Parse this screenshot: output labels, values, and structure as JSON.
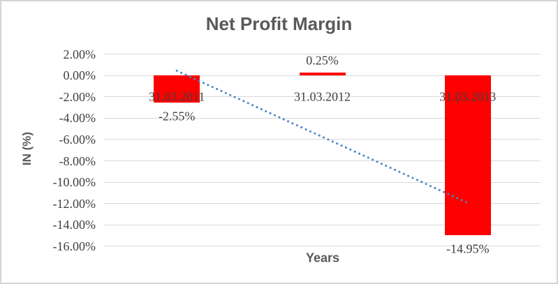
{
  "chart_data": {
    "type": "bar",
    "title": "Net Profit Margin",
    "xlabel": "Years",
    "ylabel": "IN (%)",
    "categories": [
      "31.03.2011",
      "31.03.2012",
      "31.03.2013"
    ],
    "values": [
      -2.55,
      0.25,
      -14.95
    ],
    "data_labels": [
      "-2.55%",
      "0.25%",
      "-14.95%"
    ],
    "y_tick_labels": [
      "2.00%",
      "0.00%",
      "-2.00%",
      "-4.00%",
      "-6.00%",
      "-8.00%",
      "-10.00%",
      "-12.00%",
      "-14.00%",
      "-16.00%"
    ],
    "y_tick_values": [
      2,
      0,
      -2,
      -4,
      -6,
      -8,
      -10,
      -12,
      -14,
      -16
    ],
    "ylim": [
      -16,
      2
    ],
    "grid": true,
    "legend": "none",
    "bar_color": "#ff0000",
    "trendline": {
      "type": "linear",
      "style": "dotted",
      "color": "#4a86c8",
      "start_value": 0.45,
      "end_value": -11.95
    }
  },
  "colors": {
    "title": "#595959",
    "axis_title": "#595959",
    "tick_label": "#404040",
    "gridline": "#d9d9d9",
    "frame_border": "#d4d4d4",
    "background": "#ffffff"
  }
}
